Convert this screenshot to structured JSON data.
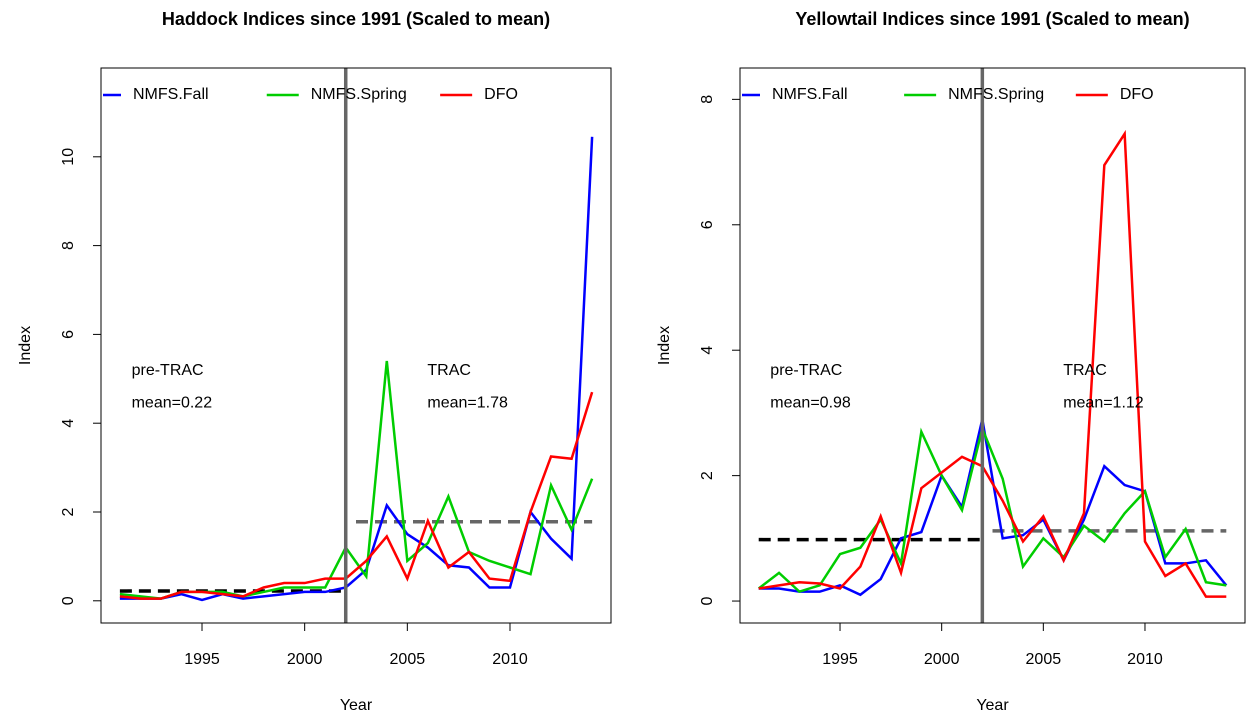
{
  "chart_data": [
    {
      "type": "line",
      "title": "Haddock Indices since 1991 (Scaled to mean)",
      "x_label": "Year",
      "y_label": "Index",
      "x": [
        1991,
        1992,
        1993,
        1994,
        1995,
        1996,
        1997,
        1998,
        1999,
        2000,
        2001,
        2002,
        2003,
        2004,
        2005,
        2006,
        2007,
        2008,
        2009,
        2010,
        2011,
        2012,
        2013,
        2014
      ],
      "series": [
        {
          "name": "NMFS.Fall",
          "color": "#0000ff",
          "values": [
            0.05,
            0.05,
            0.05,
            0.15,
            0.02,
            0.15,
            0.05,
            0.1,
            0.15,
            0.2,
            0.2,
            0.3,
            0.7,
            2.15,
            1.5,
            1.2,
            0.8,
            0.75,
            0.3,
            0.3,
            2.0,
            1.4,
            0.95,
            10.45
          ]
        },
        {
          "name": "NMFS.Spring",
          "color": "#00cd00",
          "values": [
            0.15,
            0.1,
            0.05,
            0.2,
            0.2,
            0.2,
            0.1,
            0.2,
            0.3,
            0.3,
            0.3,
            1.2,
            0.55,
            5.4,
            0.9,
            1.3,
            2.35,
            1.1,
            0.9,
            0.75,
            0.6,
            2.6,
            1.6,
            2.75
          ]
        },
        {
          "name": "DFO",
          "color": "#ff0000",
          "values": [
            0.1,
            0.05,
            0.05,
            0.2,
            0.2,
            0.15,
            0.1,
            0.3,
            0.4,
            0.4,
            0.5,
            0.5,
            0.9,
            1.45,
            0.5,
            1.8,
            0.75,
            1.1,
            0.5,
            0.45,
            2.0,
            3.25,
            3.2,
            4.7
          ]
        }
      ],
      "xlim": [
        1990.08,
        2014.92
      ],
      "xticks": [
        1995,
        2000,
        2005,
        2010
      ],
      "ylim": [
        -0.5,
        12.0
      ],
      "yticks": [
        0,
        2,
        4,
        6,
        8,
        10
      ],
      "vline": 2002,
      "reference_lines": [
        {
          "x": [
            1991,
            2002
          ],
          "y": 0.22,
          "color": "#000000"
        },
        {
          "x": [
            2002.5,
            2014
          ],
          "y": 1.78,
          "color": "#666666"
        }
      ],
      "annotations": [
        {
          "label": "pre-TRAC",
          "mean": "mean=0.22"
        },
        {
          "label": "TRAC",
          "mean": "mean=1.78"
        }
      ]
    },
    {
      "type": "line",
      "title": "Yellowtail Indices since 1991 (Scaled to mean)",
      "x_label": "Year",
      "y_label": "Index",
      "x": [
        1991,
        1992,
        1993,
        1994,
        1995,
        1996,
        1997,
        1998,
        1999,
        2000,
        2001,
        2002,
        2003,
        2004,
        2005,
        2006,
        2007,
        2008,
        2009,
        2010,
        2011,
        2012,
        2013,
        2014
      ],
      "series": [
        {
          "name": "NMFS.Fall",
          "color": "#0000ff",
          "values": [
            0.2,
            0.2,
            0.15,
            0.15,
            0.25,
            0.1,
            0.35,
            1.0,
            1.1,
            2.0,
            1.5,
            2.9,
            1.0,
            1.05,
            1.3,
            0.65,
            1.3,
            2.15,
            1.85,
            1.75,
            0.6,
            0.6,
            0.65,
            0.25
          ]
        },
        {
          "name": "NMFS.Spring",
          "color": "#00cd00",
          "values": [
            0.2,
            0.45,
            0.15,
            0.25,
            0.75,
            0.85,
            1.3,
            0.6,
            2.7,
            2.0,
            1.45,
            2.75,
            1.95,
            0.55,
            1.0,
            0.7,
            1.2,
            0.95,
            1.4,
            1.75,
            0.7,
            1.15,
            0.3,
            0.25
          ]
        },
        {
          "name": "DFO",
          "color": "#ff0000",
          "values": [
            0.2,
            0.25,
            0.3,
            0.28,
            0.2,
            0.55,
            1.35,
            0.45,
            1.8,
            2.05,
            2.3,
            2.15,
            1.6,
            0.95,
            1.35,
            0.65,
            1.4,
            6.95,
            7.45,
            0.95,
            0.4,
            0.6,
            0.07,
            0.07
          ]
        }
      ],
      "xlim": [
        1990.08,
        2014.92
      ],
      "xticks": [
        1995,
        2000,
        2005,
        2010
      ],
      "ylim": [
        -0.35,
        8.5
      ],
      "yticks": [
        0,
        2,
        4,
        6,
        8
      ],
      "vline": 2002,
      "reference_lines": [
        {
          "x": [
            1991,
            2002
          ],
          "y": 0.98,
          "color": "#000000"
        },
        {
          "x": [
            2002.5,
            2014
          ],
          "y": 1.12,
          "color": "#666666"
        }
      ],
      "annotations": [
        {
          "label": "pre-TRAC",
          "mean": "mean=0.98"
        },
        {
          "label": "TRAC",
          "mean": "mean=1.12"
        }
      ]
    }
  ]
}
